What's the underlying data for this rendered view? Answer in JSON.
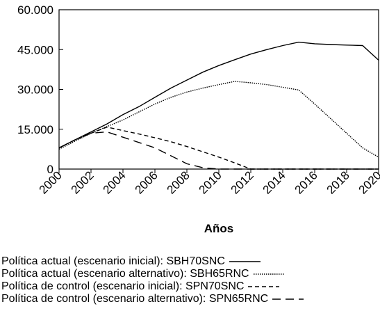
{
  "chart_data": {
    "type": "line",
    "xlabel": "Años",
    "ylabel": "",
    "ylim": [
      0,
      60000
    ],
    "xlim": [
      2000,
      2020
    ],
    "y_ticks": [
      0,
      15000,
      30000,
      45000,
      60000
    ],
    "y_tick_labels": [
      "0",
      "15.000",
      "30.000",
      "45.000",
      "60.000"
    ],
    "x_ticks": [
      2000,
      2002,
      2004,
      2006,
      2008,
      2010,
      2012,
      2014,
      2016,
      2018,
      2020
    ],
    "x_tick_labels": [
      "2000",
      "2002",
      "2004",
      "2006",
      "2008",
      "2010",
      "2012",
      "2014",
      "2016",
      "2018",
      "2020"
    ],
    "grid": false,
    "legend_position": "bottom",
    "series": [
      {
        "name": "Política actual (escenario inicial): SBH70SNC",
        "style": "solid",
        "x": [
          2000,
          2001,
          2002,
          2003,
          2004,
          2005,
          2006,
          2007,
          2008,
          2009,
          2010,
          2011,
          2012,
          2013,
          2014,
          2015,
          2016,
          2017,
          2018,
          2019,
          2020
        ],
        "y": [
          8000,
          11000,
          14000,
          17000,
          20500,
          23500,
          27000,
          30500,
          33500,
          36500,
          39000,
          41200,
          43300,
          45000,
          46500,
          47800,
          47200,
          46900,
          46700,
          46500,
          41000
        ]
      },
      {
        "name": "Política actual (escenario alternativo): SBH65RNC",
        "style": "dotted",
        "x": [
          2000,
          2001,
          2002,
          2003,
          2004,
          2005,
          2006,
          2007,
          2008,
          2009,
          2010,
          2011,
          2012,
          2013,
          2014,
          2015,
          2016,
          2017,
          2018,
          2019,
          2020
        ],
        "y": [
          7500,
          10500,
          13500,
          16000,
          18500,
          21500,
          24500,
          27000,
          29000,
          30500,
          31800,
          33000,
          32500,
          31800,
          30800,
          29800,
          24500,
          19000,
          13500,
          8000,
          4500
        ]
      },
      {
        "name": "Política de control (escenario inicial): SPN70SNC",
        "style": "short-dashed",
        "x": [
          2000,
          2001,
          2002,
          2003,
          2004,
          2005,
          2006,
          2007,
          2008,
          2009,
          2010,
          2011,
          2012,
          2013,
          2014,
          2015,
          2016,
          2017,
          2018,
          2019,
          2020
        ],
        "y": [
          8000,
          11000,
          13500,
          15800,
          14500,
          13200,
          11800,
          10300,
          8500,
          6500,
          4500,
          2300,
          0,
          0,
          0,
          0,
          0,
          0,
          0,
          0,
          0
        ]
      },
      {
        "name": "Política de control (escenario alternativo): SPN65RNC",
        "style": "long-dashed",
        "x": [
          2000,
          2001,
          2002,
          2003,
          2004,
          2005,
          2006,
          2007,
          2008,
          2009,
          2010,
          2011,
          2012,
          2013,
          2014,
          2015,
          2016,
          2017,
          2018,
          2019,
          2020
        ],
        "y": [
          8000,
          11000,
          13500,
          14000,
          12000,
          10000,
          8000,
          5000,
          2000,
          500,
          0,
          0,
          0,
          0,
          0,
          0,
          0,
          0,
          0,
          0,
          0
        ]
      }
    ]
  }
}
